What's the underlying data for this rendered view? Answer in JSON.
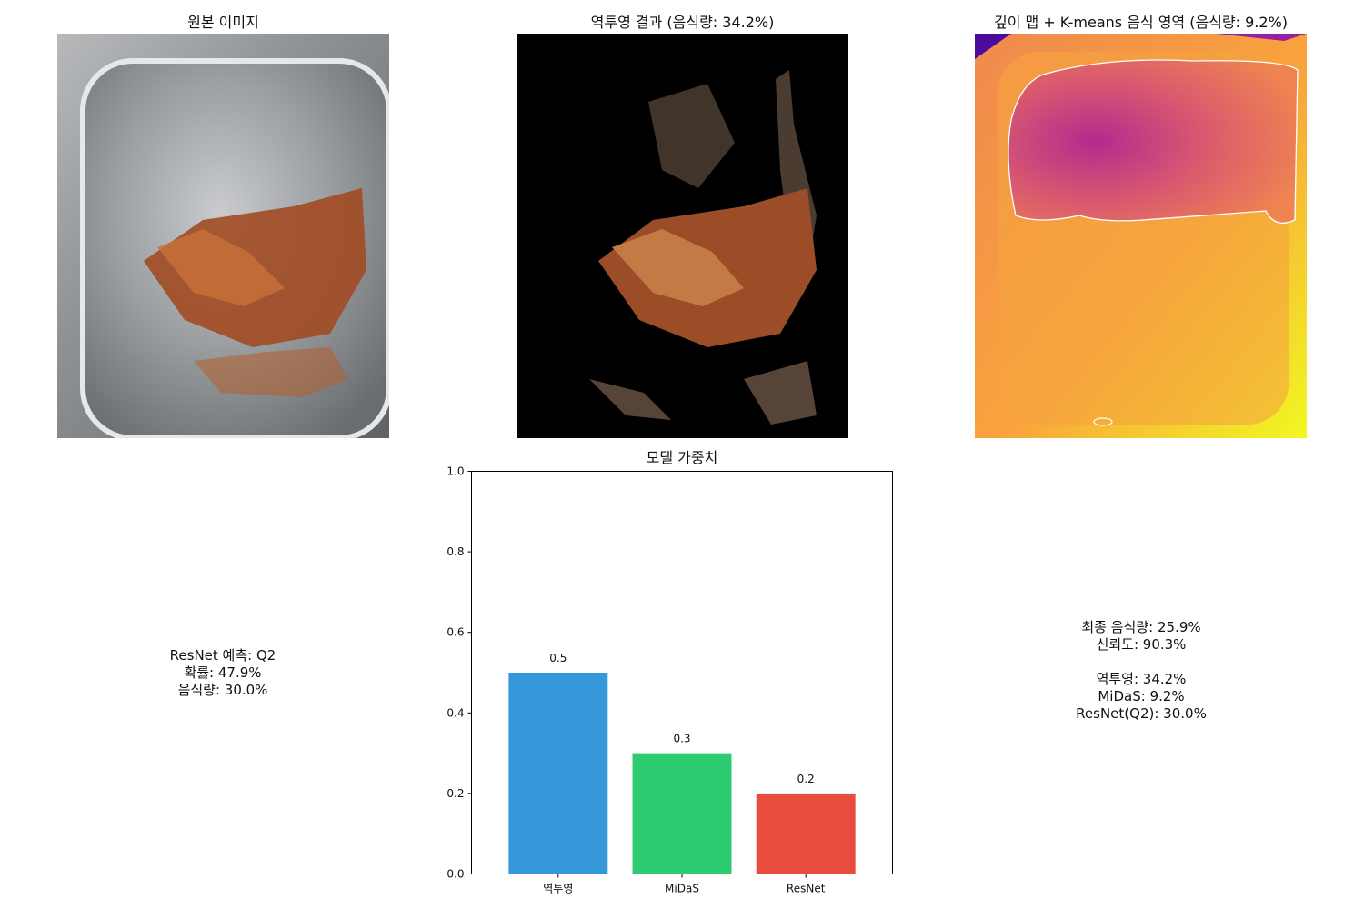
{
  "panels": {
    "original": {
      "title": "원본 이미지"
    },
    "backproj": {
      "title": "역투영 결과 (음식량: 34.2%)"
    },
    "depth": {
      "title": "깊이 맵 + K-means 음식 영역 (음식량: 9.2%)"
    }
  },
  "resnet_info": {
    "line1": "ResNet 예측: Q2",
    "line2": "확률: 47.9%",
    "line3": "음식량: 30.0%"
  },
  "final_info": {
    "line1": "최종 음식량: 25.9%",
    "line2": "신뢰도: 90.3%",
    "line3": "역투영: 34.2%",
    "line4": "MiDaS: 9.2%",
    "line5": "ResNet(Q2): 30.0%"
  },
  "chart_data": {
    "type": "bar",
    "title": "모델 가중치",
    "categories": [
      "역투영",
      "MiDaS",
      "ResNet"
    ],
    "values": [
      0.5,
      0.3,
      0.2
    ],
    "value_labels": [
      "0.5",
      "0.3",
      "0.2"
    ],
    "colors": [
      "#3498db",
      "#2ecc71",
      "#e74c3c"
    ],
    "ylim": [
      0,
      1.0
    ],
    "yticks": [
      "0.0",
      "0.2",
      "0.4",
      "0.6",
      "0.8",
      "1.0"
    ],
    "xlabel": "",
    "ylabel": "",
    "grid": false
  }
}
